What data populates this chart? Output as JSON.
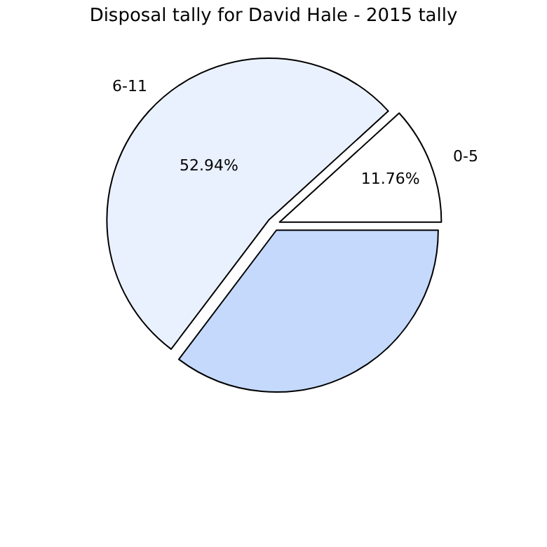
{
  "chart_data": {
    "type": "pie",
    "title": "Disposal tally for David Hale - 2015 tally",
    "categories": [
      "0-5",
      "6-11",
      null
    ],
    "values": [
      11.76,
      52.94,
      35.3
    ],
    "value_labels": [
      "11.76%",
      "52.94%",
      null
    ],
    "colors": [
      "#ffffff",
      "#eaf1fe",
      "#c4d9fc"
    ],
    "legend": false
  }
}
